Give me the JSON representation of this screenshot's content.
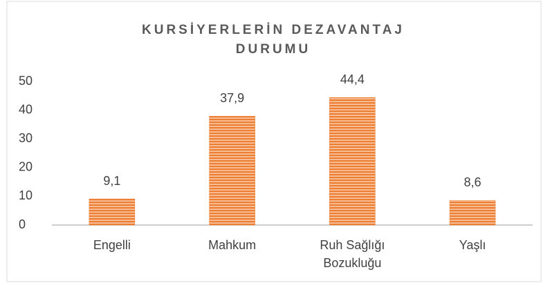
{
  "chart_data": {
    "type": "bar",
    "title": "KURSİYERLERİN DEZAVANTAJ DURUMU",
    "categories": [
      "Engelli",
      "Mahkum",
      "Ruh Sağlığı Bozukluğu",
      "Yaşlı"
    ],
    "values": [
      9.1,
      37.9,
      44.4,
      8.6
    ],
    "value_labels": [
      "9,1",
      "37,9",
      "44,4",
      "8,6"
    ],
    "color": "#ed7d31",
    "ylim": [
      0,
      50
    ],
    "yticks": [
      0,
      10,
      20,
      30,
      40,
      50
    ],
    "grid": false
  }
}
